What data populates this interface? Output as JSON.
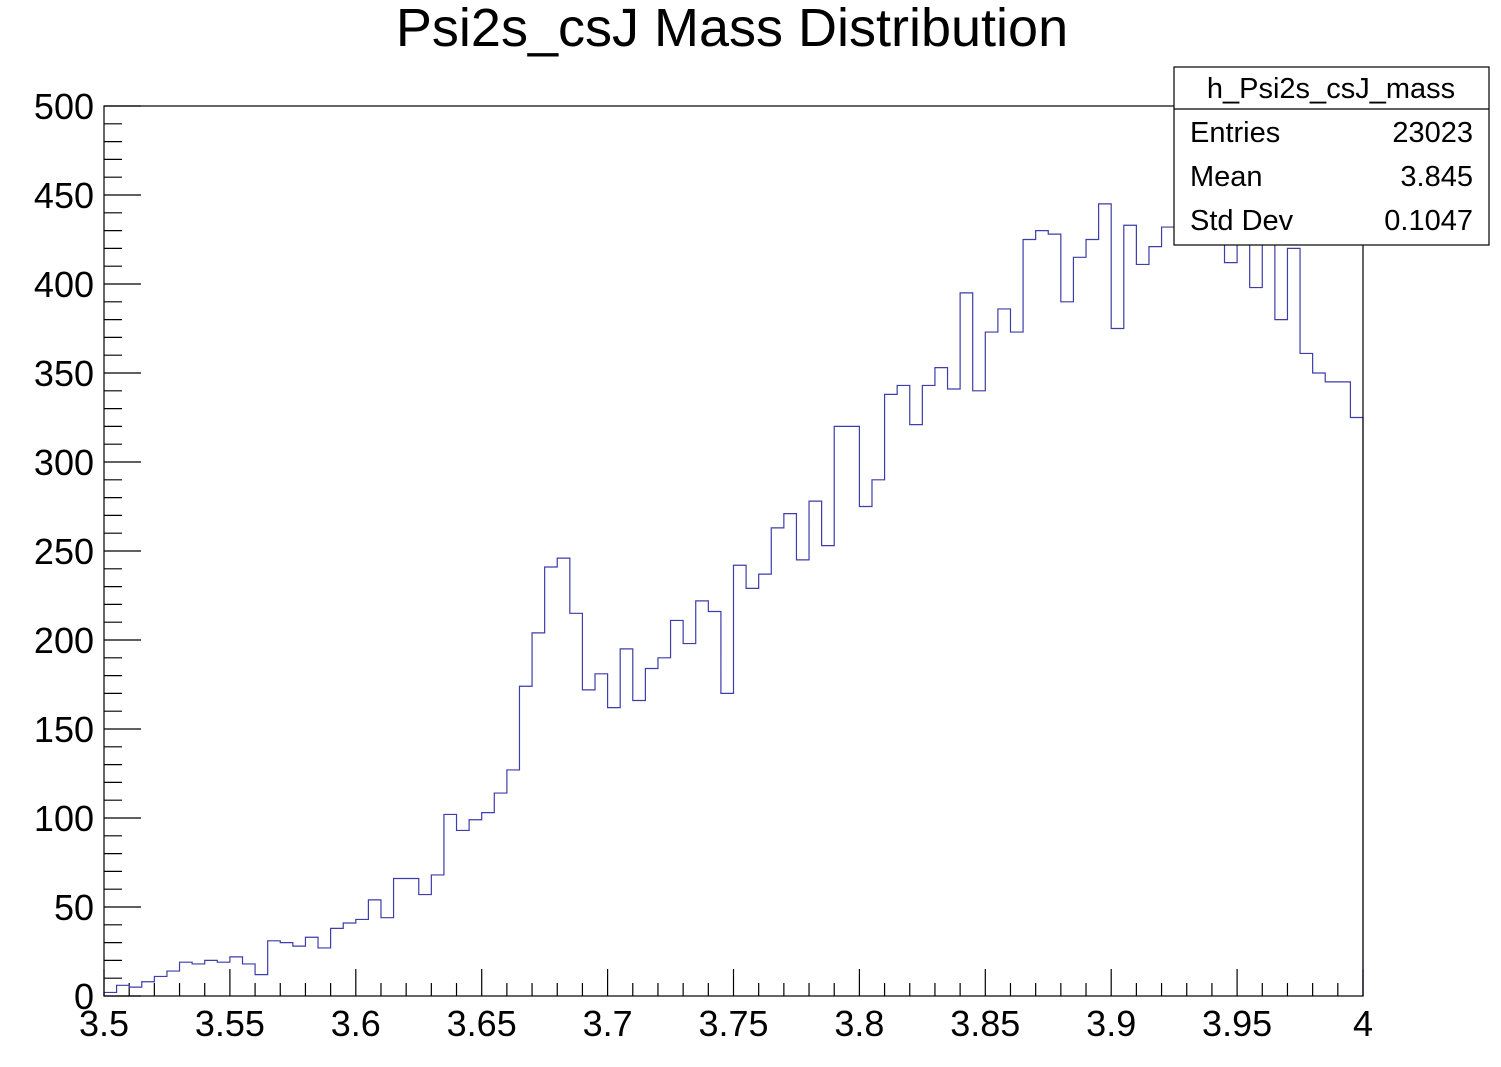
{
  "chart_data": {
    "type": "bar",
    "title": "Psi2s_csJ Mass Distribution",
    "xlabel": "",
    "ylabel": "",
    "xlim": [
      3.5,
      4.0
    ],
    "ylim": [
      0,
      500
    ],
    "bin_width": 0.005,
    "line_color": "#3d3dab",
    "x_tick_labels": [
      "3.5",
      "3.55",
      "3.6",
      "3.65",
      "3.7",
      "3.75",
      "3.8",
      "3.85",
      "3.9",
      "3.95",
      "4"
    ],
    "y_tick_labels": [
      "0",
      "50",
      "100",
      "150",
      "200",
      "250",
      "300",
      "350",
      "400",
      "450",
      "500"
    ],
    "stats_box": {
      "name": "h_Psi2s_csJ_mass",
      "rows": [
        {
          "label": "Entries",
          "value": "23023"
        },
        {
          "label": "Mean",
          "value": "3.845"
        },
        {
          "label": "Std Dev",
          "value": "0.1047"
        }
      ]
    },
    "values": [
      2,
      6,
      5,
      8,
      11,
      14,
      19,
      18,
      20,
      19,
      22,
      18,
      12,
      31,
      30,
      28,
      33,
      27,
      38,
      41,
      43,
      54,
      44,
      66,
      66,
      57,
      68,
      102,
      93,
      99,
      103,
      114,
      127,
      174,
      204,
      241,
      246,
      215,
      172,
      181,
      162,
      195,
      166,
      184,
      190,
      211,
      198,
      222,
      216,
      170,
      242,
      229,
      237,
      263,
      271,
      245,
      278,
      253,
      320,
      320,
      275,
      290,
      338,
      343,
      321,
      343,
      353,
      341,
      395,
      340,
      373,
      386,
      373,
      425,
      430,
      428,
      390,
      415,
      425,
      445,
      375,
      433,
      411,
      421,
      432,
      445,
      458,
      432,
      445,
      412,
      452,
      398,
      432,
      380,
      420,
      361,
      350,
      345,
      345,
      325
    ]
  }
}
